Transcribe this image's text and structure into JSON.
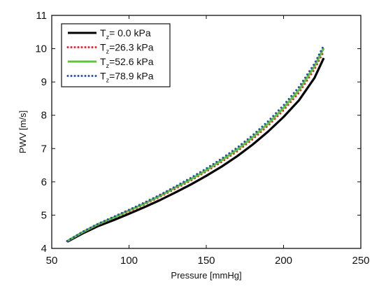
{
  "chart_data": {
    "type": "line",
    "title": "",
    "xlabel": "Pressure [mmHg]",
    "ylabel": "PWV [m/s]",
    "xlim": [
      50,
      250
    ],
    "ylim": [
      4,
      11
    ],
    "xticks": [
      50,
      100,
      150,
      200,
      250
    ],
    "yticks": [
      4,
      5,
      6,
      7,
      8,
      9,
      10,
      11
    ],
    "grid": false,
    "legend_position": "top-left",
    "series": [
      {
        "label_main": "T",
        "label_sub": "z",
        "label_rest": "=  0.0 kPa",
        "color": "#000000",
        "style": "solid",
        "x": [
          60,
          70,
          80,
          90,
          100,
          110,
          120,
          130,
          140,
          150,
          160,
          170,
          180,
          190,
          200,
          210,
          220,
          226
        ],
        "y": [
          4.2,
          4.45,
          4.67,
          4.85,
          5.04,
          5.24,
          5.45,
          5.68,
          5.92,
          6.18,
          6.46,
          6.77,
          7.12,
          7.51,
          7.95,
          8.45,
          9.12,
          9.72
        ]
      },
      {
        "label_main": "T",
        "label_sub": "z",
        "label_rest": "=26.3 kPa",
        "color": "#e8202a",
        "style": "dotted",
        "x": [
          60,
          70,
          80,
          90,
          100,
          110,
          120,
          130,
          140,
          150,
          160,
          170,
          180,
          190,
          200,
          210,
          220,
          226
        ],
        "y": [
          4.22,
          4.48,
          4.71,
          4.91,
          5.11,
          5.32,
          5.55,
          5.79,
          6.04,
          6.31,
          6.6,
          6.92,
          7.28,
          7.69,
          8.15,
          8.68,
          9.38,
          9.92
        ]
      },
      {
        "label_main": "T",
        "label_sub": "z",
        "label_rest": "=52.6 kPa",
        "color": "#5ec43c",
        "style": "solid",
        "x": [
          60,
          70,
          80,
          90,
          100,
          110,
          120,
          130,
          140,
          150,
          160,
          170,
          180,
          190,
          200,
          210,
          220,
          226
        ],
        "y": [
          4.22,
          4.49,
          4.73,
          4.93,
          5.14,
          5.35,
          5.58,
          5.83,
          6.08,
          6.35,
          6.65,
          6.97,
          7.34,
          7.75,
          8.22,
          8.76,
          9.47,
          10.02
        ]
      },
      {
        "label_main": "T",
        "label_sub": "z",
        "label_rest": "=78.9 kPa",
        "color": "#2a4fa8",
        "style": "dotted",
        "x": [
          60,
          70,
          80,
          90,
          100,
          110,
          120,
          130,
          140,
          150,
          160,
          170,
          180,
          190,
          200,
          210,
          220,
          226
        ],
        "y": [
          4.22,
          4.5,
          4.74,
          4.95,
          5.16,
          5.38,
          5.61,
          5.86,
          6.12,
          6.4,
          6.7,
          7.03,
          7.4,
          7.82,
          8.3,
          8.85,
          9.55,
          10.1
        ]
      }
    ]
  }
}
